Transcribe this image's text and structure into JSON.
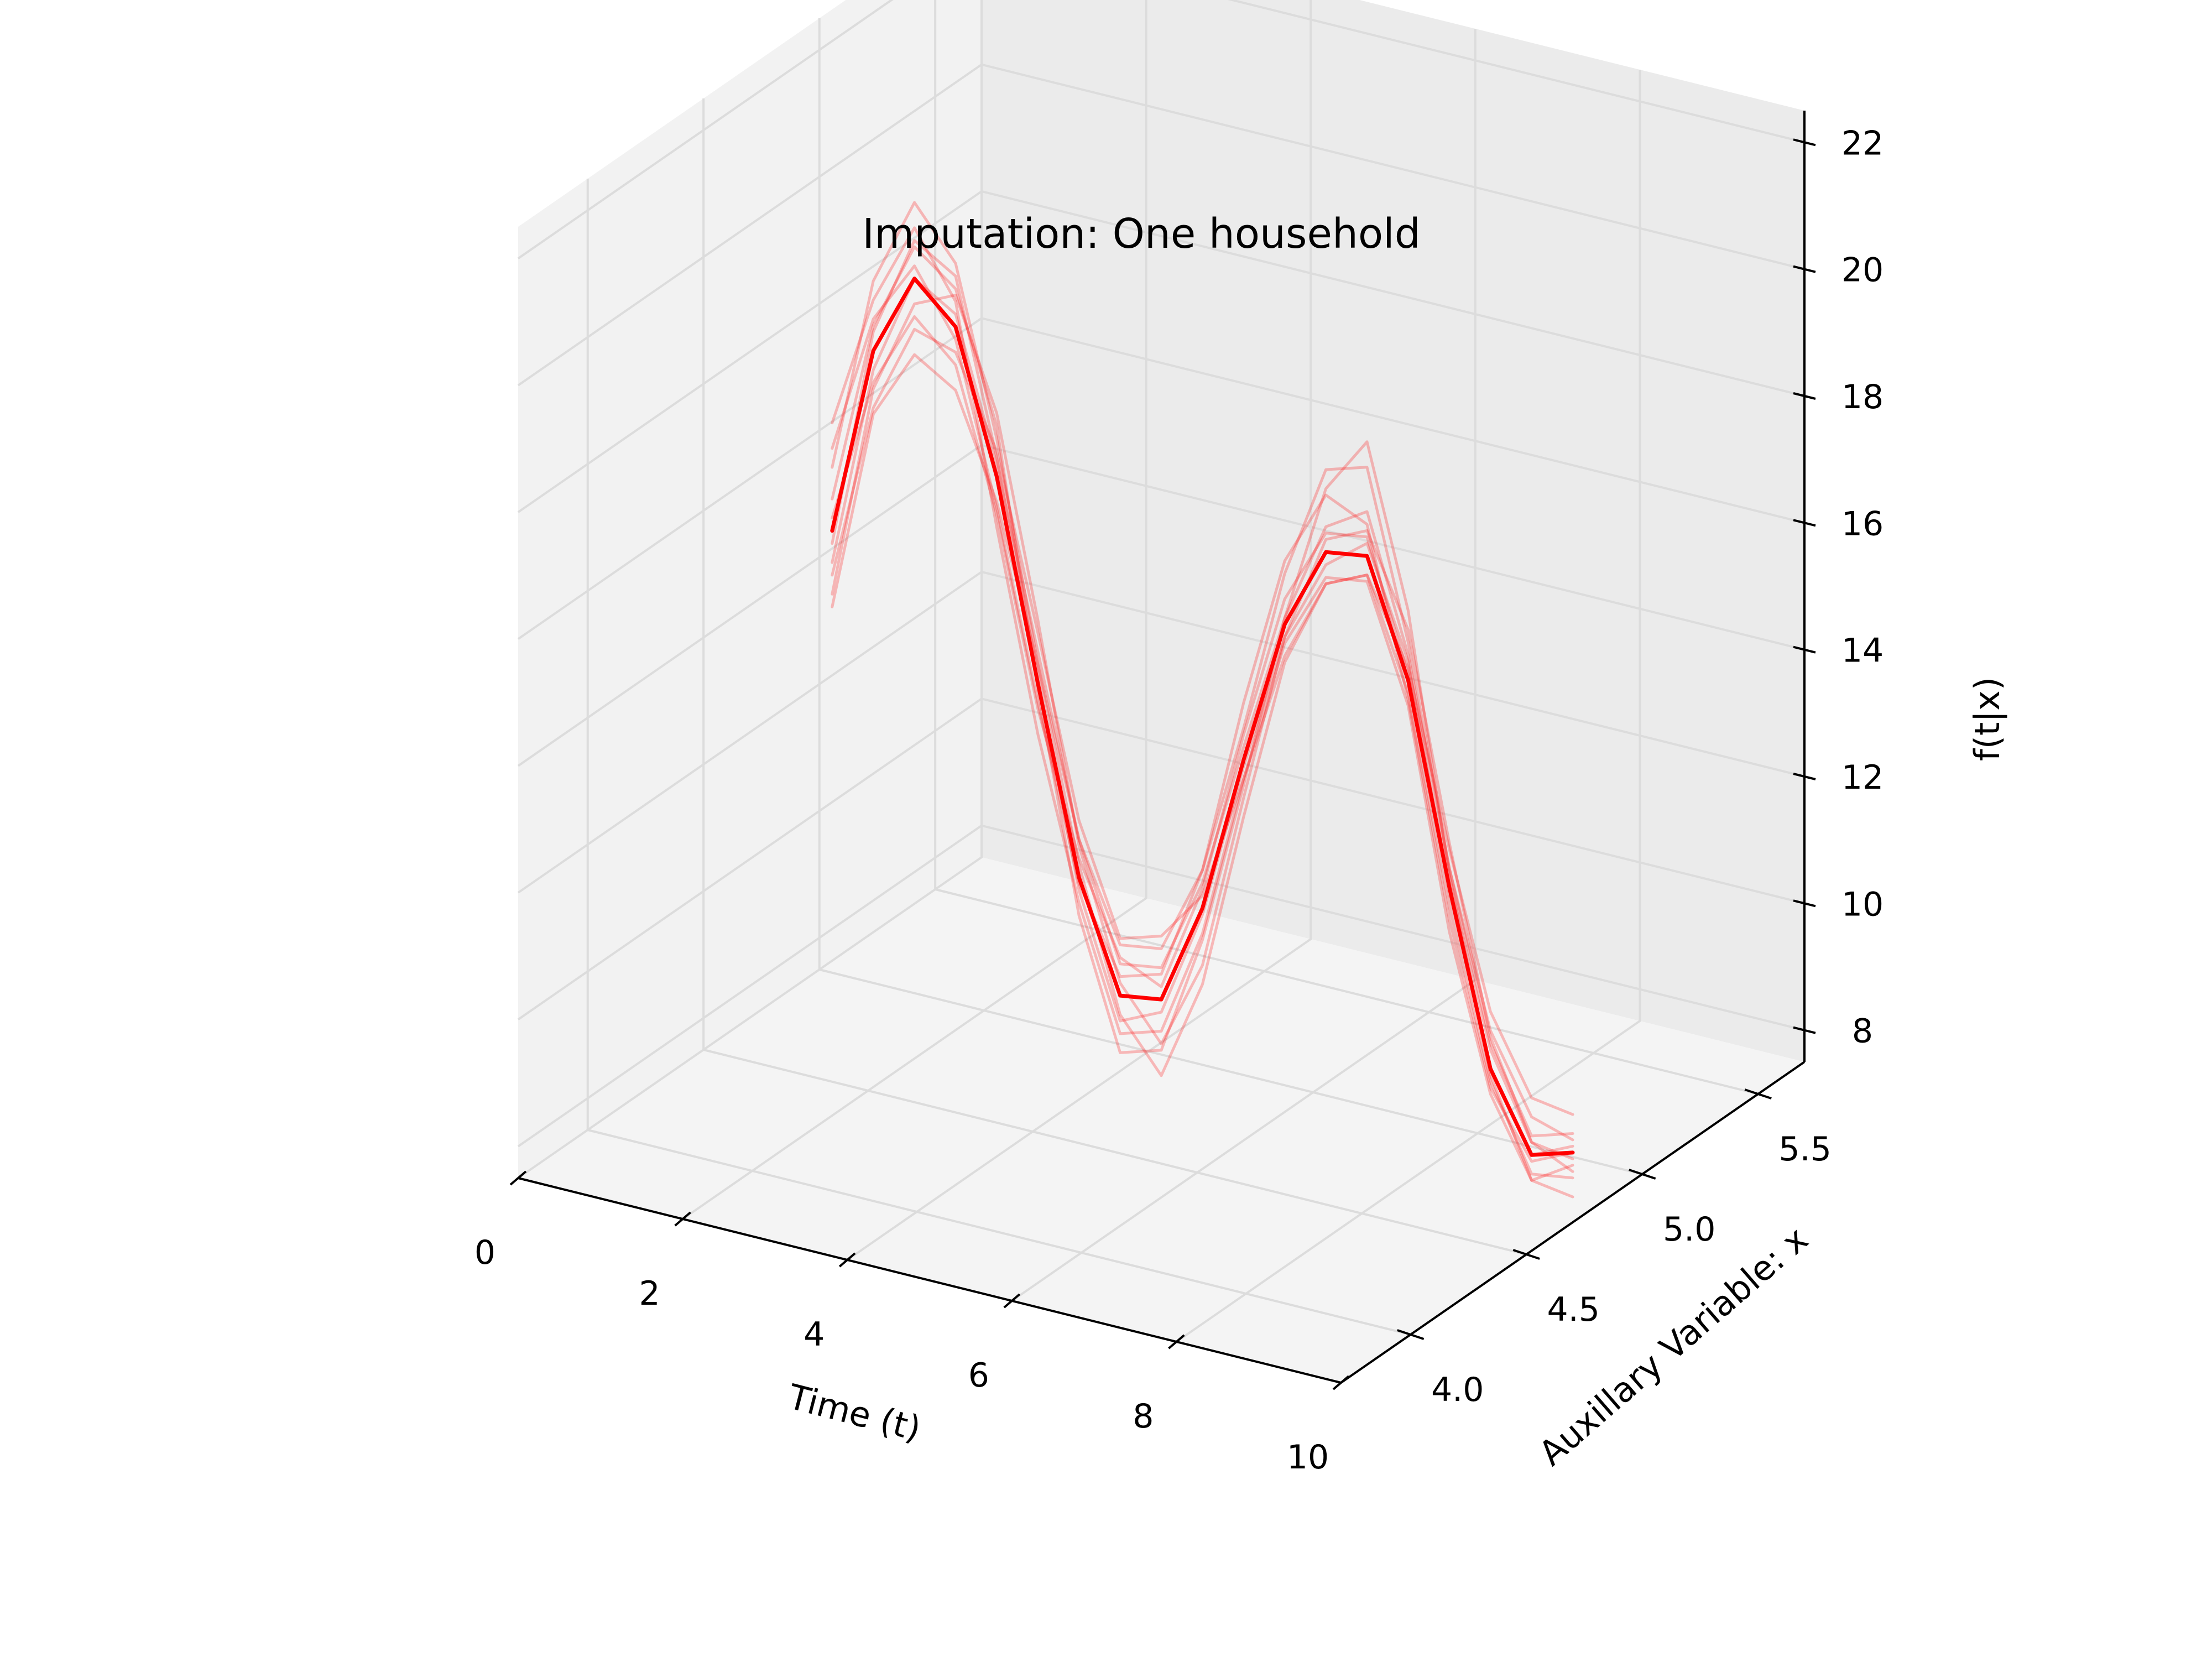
{
  "chart_data": {
    "type": "line",
    "projection": "3d",
    "title": "Imputation: One household",
    "xlabel": "Time (t)",
    "ylabel": "Auxillary Variable: x",
    "zlabel": "f(t|x)",
    "xlim": [
      0,
      10
    ],
    "ylim": [
      3.7,
      5.7
    ],
    "zlim": [
      7.5,
      22.5
    ],
    "x_ticks": [
      "0",
      "2",
      "4",
      "6",
      "8",
      "10"
    ],
    "y_ticks": [
      "4.0",
      "4.5",
      "5.0",
      "5.5"
    ],
    "z_ticks": [
      "8",
      "10",
      "12",
      "14",
      "16",
      "18",
      "20",
      "22"
    ],
    "grid": true,
    "colors": {
      "mean": "#ff0000",
      "samples": "#ff0000"
    },
    "series": [
      {
        "role": "mean",
        "y_value": 4.7,
        "x": [
          1,
          1.5,
          2,
          2.5,
          3,
          3.5,
          4,
          4.5,
          5,
          5.5,
          6,
          6.5,
          7,
          7.5,
          8,
          8.5,
          9,
          9.5,
          10
        ],
        "z": [
          15.5,
          18.5,
          19.8,
          19.2,
          17.0,
          13.9,
          11.0,
          9.3,
          9.4,
          11.0,
          13.5,
          15.8,
          17.1,
          17.2,
          15.4,
          12.3,
          9.6,
          8.4,
          8.6
        ]
      },
      {
        "role": "sample",
        "y_value": 4.7,
        "x": [
          1,
          1.5,
          2,
          2.5,
          3,
          3.5,
          4,
          4.5,
          5,
          5.5,
          6,
          6.5,
          7,
          7.5,
          8,
          8.5,
          9,
          9.5,
          10
        ],
        "z": [
          17.2,
          19.3,
          20.6,
          19.6,
          16.2,
          13.1,
          10.6,
          8.7,
          8.9,
          10.6,
          13.2,
          15.5,
          16.7,
          16.8,
          15.0,
          11.6,
          9.2,
          8.0,
          8.4
        ]
      },
      {
        "role": "sample",
        "y_value": 4.7,
        "x": [
          1,
          1.5,
          2,
          2.5,
          3,
          3.5,
          4,
          4.5,
          5,
          5.5,
          6,
          6.5,
          7,
          7.5,
          8,
          8.5,
          9,
          9.5,
          10
        ],
        "z": [
          14.3,
          17.5,
          18.6,
          18.2,
          16.6,
          14.2,
          11.6,
          10.1,
          10.2,
          11.6,
          14.0,
          16.6,
          18.4,
          18.6,
          16.0,
          12.6,
          10.2,
          9.0,
          8.8
        ]
      },
      {
        "role": "sample",
        "y_value": 4.7,
        "x": [
          1,
          1.5,
          2,
          2.5,
          3,
          3.5,
          4,
          4.5,
          5,
          5.5,
          6,
          6.5,
          7,
          7.5,
          8,
          8.5,
          9,
          9.5,
          10
        ],
        "z": [
          16.5,
          19.6,
          21.0,
          20.2,
          17.6,
          14.2,
          11.2,
          9.0,
          8.2,
          9.8,
          12.6,
          15.2,
          16.6,
          16.9,
          15.2,
          12.0,
          9.4,
          8.1,
          8.2
        ]
      },
      {
        "role": "sample",
        "y_value": 4.7,
        "x": [
          1,
          1.5,
          2,
          2.5,
          3,
          3.5,
          4,
          4.5,
          5,
          5.5,
          6,
          6.5,
          7,
          7.5,
          8,
          8.5,
          9,
          9.5,
          10
        ],
        "z": [
          15.0,
          18.2,
          19.8,
          19.4,
          17.2,
          14.4,
          11.6,
          9.8,
          9.9,
          11.4,
          13.7,
          15.9,
          17.5,
          17.9,
          15.8,
          12.6,
          10.0,
          8.7,
          8.9
        ]
      },
      {
        "role": "sample",
        "y_value": 4.7,
        "x": [
          1,
          1.5,
          2,
          2.5,
          3,
          3.5,
          4,
          4.5,
          5,
          5.5,
          6,
          6.5,
          7,
          7.5,
          8,
          8.5,
          9,
          9.5,
          10
        ],
        "z": [
          14.8,
          17.6,
          19.0,
          18.8,
          17.4,
          14.7,
          11.9,
          10.2,
          10.4,
          11.2,
          13.2,
          15.3,
          16.6,
          16.9,
          15.6,
          12.9,
          10.5,
          9.3,
          9.2
        ]
      },
      {
        "role": "sample",
        "y_value": 4.7,
        "x": [
          1,
          1.5,
          2,
          2.5,
          3,
          3.5,
          4,
          4.5,
          5,
          5.5,
          6,
          6.5,
          7,
          7.5,
          8,
          8.5,
          9,
          9.5,
          10
        ],
        "z": [
          16.0,
          18.9,
          20.3,
          19.8,
          17.8,
          13.8,
          10.4,
          8.4,
          8.6,
          10.5,
          13.1,
          15.9,
          18.1,
          19.0,
          16.5,
          12.5,
          9.5,
          8.0,
          7.9
        ]
      },
      {
        "role": "sample",
        "y_value": 4.7,
        "x": [
          1,
          1.5,
          2,
          2.5,
          3,
          3.5,
          4,
          4.5,
          5,
          5.5,
          6,
          6.5,
          7,
          7.5,
          8,
          8.5,
          9,
          9.5,
          10
        ],
        "z": [
          15.7,
          18.0,
          19.2,
          18.6,
          16.4,
          13.5,
          11.3,
          9.9,
          9.6,
          11.3,
          13.9,
          16.2,
          17.4,
          17.5,
          15.5,
          12.4,
          9.9,
          8.6,
          8.5
        ]
      },
      {
        "role": "sample",
        "y_value": 4.7,
        "x": [
          1,
          1.5,
          2,
          2.5,
          3,
          3.5,
          4,
          4.5,
          5,
          5.5,
          6,
          6.5,
          7,
          7.5,
          8,
          8.5,
          9,
          9.5,
          10
        ],
        "z": [
          14.5,
          17.9,
          19.4,
          19.7,
          18.0,
          14.9,
          11.5,
          9.5,
          8.7,
          10.1,
          12.9,
          15.6,
          17.3,
          17.6,
          16.2,
          13.0,
          10.1,
          8.6,
          8.3
        ]
      },
      {
        "role": "sample",
        "y_value": 4.7,
        "x": [
          1,
          1.5,
          2,
          2.5,
          3,
          3.5,
          4,
          4.5,
          5,
          5.5,
          6,
          6.5,
          7,
          7.5,
          8,
          8.5,
          9,
          9.5,
          10
        ],
        "z": [
          16.8,
          19.0,
          20.0,
          19.0,
          16.5,
          13.6,
          10.9,
          9.6,
          9.8,
          11.6,
          14.4,
          16.8,
          18.0,
          17.7,
          15.1,
          11.8,
          9.3,
          8.3,
          8.6
        ]
      },
      {
        "role": "sample",
        "y_value": 4.7,
        "x": [
          1,
          1.5,
          2,
          2.5,
          3,
          3.5,
          4,
          4.5,
          5,
          5.5,
          6,
          6.5,
          7,
          7.5,
          8,
          8.5,
          9,
          9.5,
          10
        ],
        "z": [
          15.3,
          18.8,
          20.4,
          20.0,
          17.3,
          14.0,
          10.8,
          8.9,
          9.2,
          10.9,
          13.4,
          15.6,
          16.9,
          17.4,
          15.7,
          12.2,
          9.6,
          8.4,
          8.7
        ]
      }
    ]
  }
}
